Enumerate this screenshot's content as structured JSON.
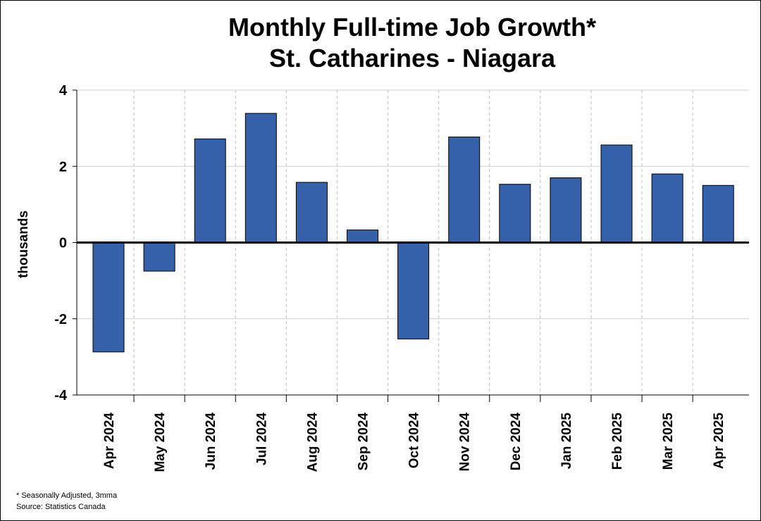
{
  "chart_data": {
    "type": "bar",
    "title": "Monthly Full-time Job Growth*",
    "subtitle": "St. Catharines - Niagara",
    "xlabel": "",
    "ylabel": "thousands",
    "ylim": [
      -4,
      4
    ],
    "yticks": [
      4,
      2,
      0,
      -2,
      -4
    ],
    "grid": true,
    "legend": "none",
    "bar_color": "#3560aa",
    "categories": [
      "Apr 2024",
      "May 2024",
      "Jun 2024",
      "Jul 2024",
      "Aug 2024",
      "Sep 2024",
      "Oct 2024",
      "Nov 2024",
      "Dec 2024",
      "Jan 2025",
      "Feb 2025",
      "Mar 2025",
      "Apr 2025"
    ],
    "values": [
      -2.87,
      -0.75,
      2.72,
      3.39,
      1.58,
      0.33,
      -2.53,
      2.77,
      1.53,
      1.7,
      2.56,
      1.8,
      1.5
    ]
  },
  "footnotes": {
    "note": "* Seasonally Adjusted, 3mma",
    "source": "Source: Statistics Canada"
  }
}
